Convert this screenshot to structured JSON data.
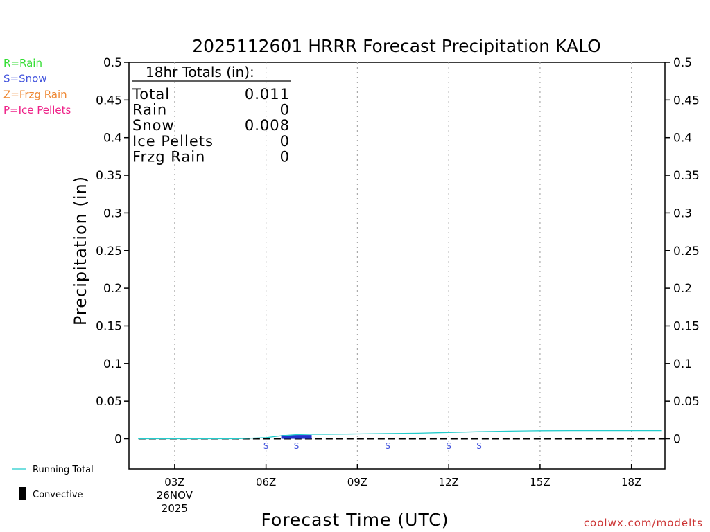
{
  "chart_data": {
    "type": "bar",
    "title": "2025112601 HRRR Forecast Precipitation KALO",
    "xlabel": "Forecast Time (UTC)",
    "ylabel": "Precipitation (in)",
    "ylim": [
      -0.04,
      0.5
    ],
    "xlim": [
      1.5,
      19.1
    ],
    "grid": "vertical dotted",
    "y_ticks": [
      0,
      0.05,
      0.1,
      0.15,
      0.2,
      0.25,
      0.3,
      0.35,
      0.4,
      0.45,
      0.5
    ],
    "y_tick_labels": [
      "0",
      "0.05",
      "0.1",
      "0.15",
      "0.2",
      "0.25",
      "0.3",
      "0.35",
      "0.4",
      "0.45",
      "0.5"
    ],
    "x_ticks": [
      {
        "hour": 3,
        "label": "03Z"
      },
      {
        "hour": 6,
        "label": "06Z"
      },
      {
        "hour": 9,
        "label": "09Z"
      },
      {
        "hour": 12,
        "label": "12Z"
      },
      {
        "hour": 15,
        "label": "15Z"
      },
      {
        "hour": 18,
        "label": "18Z"
      }
    ],
    "date_label": [
      "26NOV",
      "2025"
    ],
    "legend": [
      {
        "text": "R=Rain",
        "color": "#33dd33"
      },
      {
        "text": "S=Snow",
        "color": "#4455dd"
      },
      {
        "text": "Z=Frzg Rain",
        "color": "#ee8833"
      },
      {
        "text": "P=Ice Pellets",
        "color": "#ee2288"
      }
    ],
    "bottom_legend": {
      "running_total": "Running Total",
      "convective": "Convective"
    },
    "series": [
      {
        "name": "Running Total",
        "color": "#22cccc",
        "x": [
          1.8,
          3,
          4,
          5,
          6,
          6.5,
          7,
          7.5,
          8,
          9,
          10,
          11,
          12,
          13,
          14,
          15,
          16,
          17,
          18,
          19
        ],
        "values": [
          0,
          0,
          0,
          0,
          0.0015,
          0.004,
          0.0055,
          0.006,
          0.006,
          0.0065,
          0.007,
          0.0075,
          0.0085,
          0.0095,
          0.0102,
          0.0108,
          0.011,
          0.011,
          0.011,
          0.011
        ]
      },
      {
        "name": "Hourly Snow",
        "color": "#2233cc",
        "bars": [
          {
            "x": 7,
            "value": 0.005
          }
        ]
      }
    ],
    "precip_type_markers": [
      {
        "hour": 6,
        "label": "S"
      },
      {
        "hour": 7,
        "label": "S"
      },
      {
        "hour": 10,
        "label": "S"
      },
      {
        "hour": 12,
        "label": "S"
      },
      {
        "hour": 13,
        "label": "S"
      }
    ],
    "totals_box": {
      "header": "18hr Totals (in):",
      "rows": [
        {
          "label": "Total",
          "value": "0.011"
        },
        {
          "label": "Rain",
          "value": "0"
        },
        {
          "label": "Snow",
          "value": "0.008"
        },
        {
          "label": "Ice Pellets",
          "value": "0"
        },
        {
          "label": "Frzg Rain",
          "value": "0"
        }
      ]
    },
    "credit": "coolwx.com/modelts"
  }
}
